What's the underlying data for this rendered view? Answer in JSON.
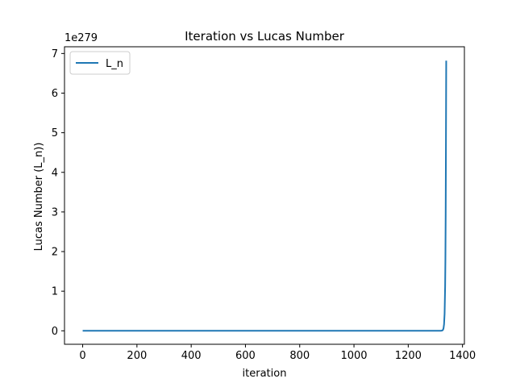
{
  "chart_data": {
    "type": "line",
    "title": "Iteration vs Lucas Number",
    "xlabel": "iteration",
    "ylabel": "Lucas Number (L_n))",
    "scale_label": "1e279",
    "scale_exponent": 279,
    "xlim": [
      -67,
      1407
    ],
    "ylim": [
      -0.34,
      7.17
    ],
    "x_ticks": [
      0,
      200,
      400,
      600,
      800,
      1000,
      1200,
      1400
    ],
    "x_tick_labels": [
      "0",
      "200",
      "400",
      "600",
      "800",
      "1000",
      "1200",
      "1400"
    ],
    "y_ticks": [
      0,
      1,
      2,
      3,
      4,
      5,
      6,
      7
    ],
    "y_tick_labels": [
      "0",
      "1",
      "2",
      "3",
      "4",
      "5",
      "6",
      "7"
    ],
    "grid": false,
    "legend_position": "upper-left",
    "series": [
      {
        "name": "L_n",
        "color": "#1f77b4",
        "x": [
          0,
          200,
          400,
          600,
          800,
          1000,
          1200,
          1300,
          1310,
          1320,
          1325,
          1328,
          1330,
          1332,
          1334,
          1336,
          1337,
          1338,
          1339,
          1340
        ],
        "y": [
          0,
          0,
          0,
          0,
          0,
          0,
          0,
          0,
          0,
          0.0004,
          0.005,
          0.024,
          0.063,
          0.164,
          0.43,
          1.13,
          1.83,
          2.96,
          4.79,
          6.82
        ]
      }
    ]
  }
}
